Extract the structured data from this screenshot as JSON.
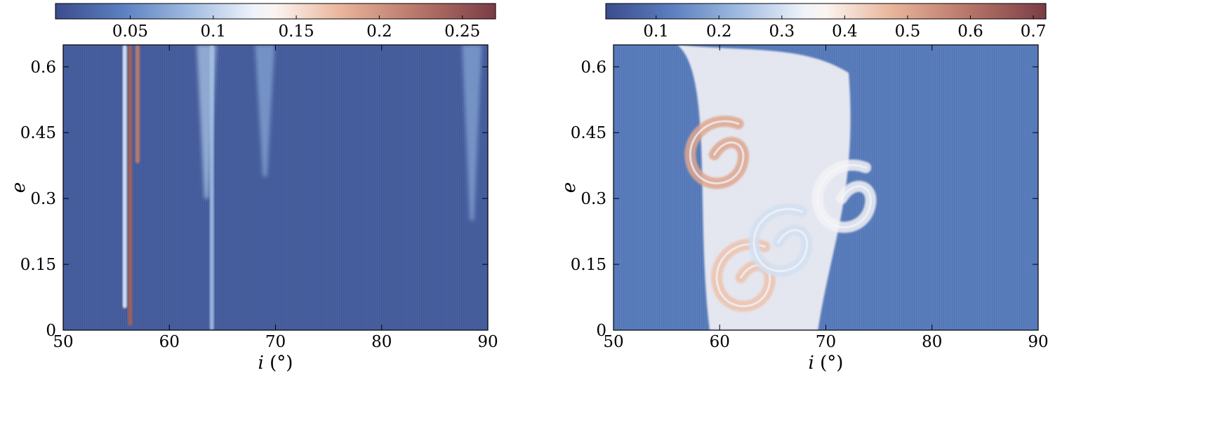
{
  "chart_data": [
    {
      "type": "heatmap",
      "xlabel_symbol": "i",
      "xlabel_unit": "(°)",
      "ylabel": "e",
      "xlim": [
        50,
        90
      ],
      "ylim": [
        0,
        0.65
      ],
      "x_ticks": [
        "50",
        "60",
        "70",
        "80",
        "90"
      ],
      "x_tick_values": [
        50,
        60,
        70,
        80,
        90
      ],
      "y_ticks": [
        "0",
        "0.15",
        "0.3",
        "0.45",
        "0.6"
      ],
      "y_tick_values": [
        0,
        0.15,
        0.3,
        0.45,
        0.6
      ],
      "colorbar": {
        "range": [
          0.005,
          0.27
        ],
        "ticks": [
          "0.05",
          "0.1",
          "0.15",
          "0.2",
          "0.25"
        ],
        "tick_values": [
          0.05,
          0.1,
          0.15,
          0.2,
          0.25
        ]
      },
      "background_value": 0.02,
      "features": [
        {
          "kind": "vertical-band",
          "i": 56.3,
          "e_range": [
            0.01,
            0.65
          ],
          "value": 0.24
        },
        {
          "kind": "vertical-band",
          "i": 57.0,
          "e_range": [
            0.38,
            0.65
          ],
          "value": 0.22
        },
        {
          "kind": "vertical-band",
          "i": 55.8,
          "e_range": [
            0.05,
            0.65
          ],
          "value": 0.11
        },
        {
          "kind": "vertical-band",
          "i": 64.0,
          "e_range": [
            0.0,
            0.65
          ],
          "value": 0.08
        },
        {
          "kind": "plume",
          "i": 63.5,
          "e_range": [
            0.3,
            0.65
          ],
          "value": 0.09
        },
        {
          "kind": "plume",
          "i": 69.0,
          "e_range": [
            0.35,
            0.65
          ],
          "value": 0.07
        },
        {
          "kind": "plume",
          "i": 88.5,
          "e_range": [
            0.25,
            0.65
          ],
          "value": 0.07
        }
      ]
    },
    {
      "type": "heatmap",
      "xlabel_symbol": "i",
      "xlabel_unit": "(°)",
      "ylabel": "e",
      "xlim": [
        50,
        90
      ],
      "ylim": [
        0,
        0.65
      ],
      "x_ticks": [
        "50",
        "60",
        "70",
        "80",
        "90"
      ],
      "x_tick_values": [
        50,
        60,
        70,
        80,
        90
      ],
      "y_ticks": [
        "0",
        "0.15",
        "0.3",
        "0.45",
        "0.6"
      ],
      "y_tick_values": [
        0,
        0.15,
        0.3,
        0.45,
        0.6
      ],
      "colorbar": {
        "range": [
          0.02,
          0.72
        ],
        "ticks": [
          "0.1",
          "0.2",
          "0.3",
          "0.4",
          "0.5",
          "0.6",
          "0.7"
        ],
        "tick_values": [
          0.1,
          0.2,
          0.3,
          0.4,
          0.5,
          0.6,
          0.7
        ]
      },
      "background_value": 0.12,
      "features": [
        {
          "kind": "chaotic-region",
          "i_range": [
            56,
            73
          ],
          "e_range": [
            0.0,
            0.65
          ],
          "value": 0.35
        },
        {
          "kind": "swirl",
          "i": 59.5,
          "e": 0.4,
          "value": 0.5
        },
        {
          "kind": "swirl",
          "i": 62.0,
          "e": 0.12,
          "value": 0.45
        },
        {
          "kind": "swirl",
          "i": 65.5,
          "e": 0.2,
          "value": 0.3
        },
        {
          "kind": "swirl",
          "i": 71.5,
          "e": 0.3,
          "value": 0.35
        }
      ]
    }
  ]
}
